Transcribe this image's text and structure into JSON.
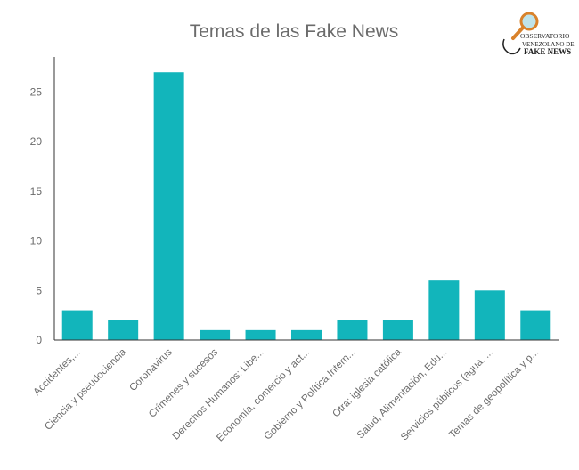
{
  "colors": {
    "bar": "#12b5bb",
    "axis": "#333333",
    "text": "#6b6b6b"
  },
  "logo": {
    "line1": "OBSERVATORIO",
    "line2": "VENEZOLANO DE",
    "line3": "FAKE NEWS",
    "icon": "magnifier-icon"
  },
  "chart_data": {
    "type": "bar",
    "title": "Temas de las Fake News",
    "xlabel": "",
    "ylabel": "",
    "ylim": [
      0,
      27.5
    ],
    "yticks": [
      "0",
      "5",
      "10",
      "15",
      "20",
      "25"
    ],
    "grid": false,
    "categories": [
      "Accidentes,...",
      "Ciencia y pseudociencia",
      "Coronavirus",
      "Crímenes y sucesos",
      "Derechos Humanos: Libe...",
      "Economía, comercio y act...",
      "Gobierno y Política Intern...",
      "Otra: iglesia católica",
      "Salud, Alimentación, Edu...",
      "Servicios públicos (agua, ...",
      "Temas de geopolítica y p..."
    ],
    "values": [
      3,
      2,
      27,
      1,
      1,
      1,
      2,
      2,
      6,
      5,
      3
    ]
  }
}
